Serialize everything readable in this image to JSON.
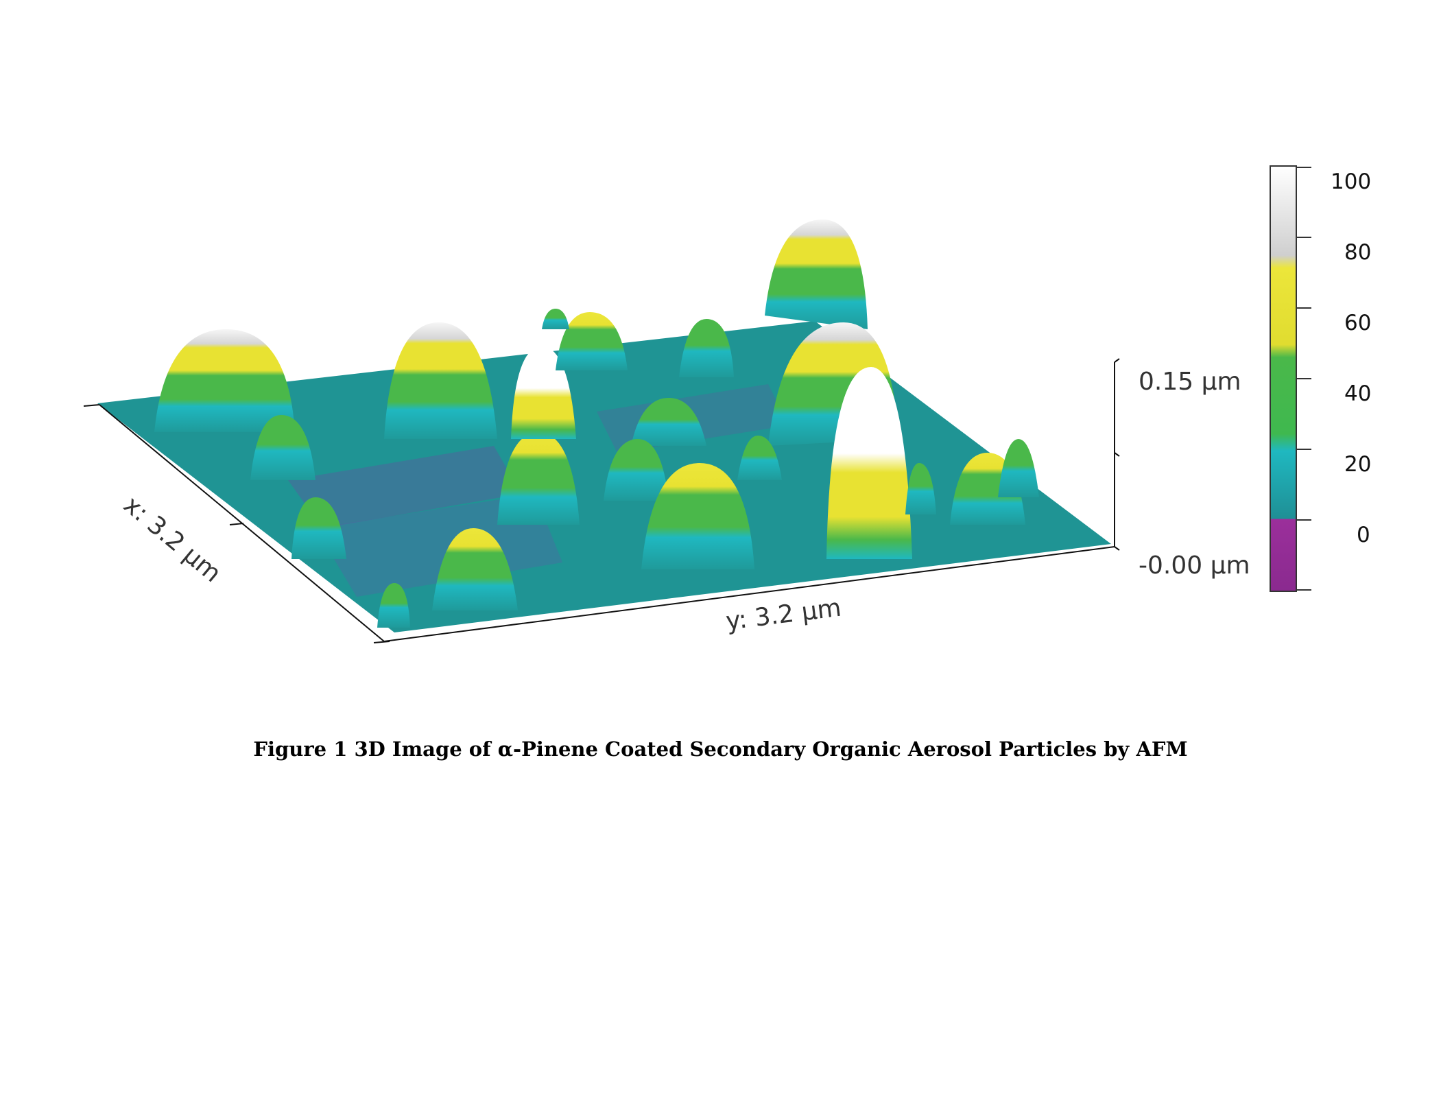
{
  "figure": {
    "axis_labels": {
      "x": "x: 3.2 µm",
      "y": "y: 3.2 µm"
    },
    "z_labels": {
      "top": "0.15 µm",
      "bottom": "-0.00 µm"
    },
    "colorbar": {
      "ticks": [
        "100",
        "80",
        "60",
        "40",
        "20",
        "0"
      ],
      "colors": {
        "magenta": "#9b2f9b",
        "teal": "#1f9a9a",
        "cyan": "#1fb8c0",
        "green": "#4ab84a",
        "yellow": "#e8e232",
        "white": "#f4f4f4",
        "gray": "#cfcfcf"
      }
    },
    "caption": {
      "prefix": "Figure 1 3D Image of ",
      "alpha": "α",
      "rest": "-Pinene Coated Secondary Organic Aerosol Particles by AFM"
    }
  }
}
